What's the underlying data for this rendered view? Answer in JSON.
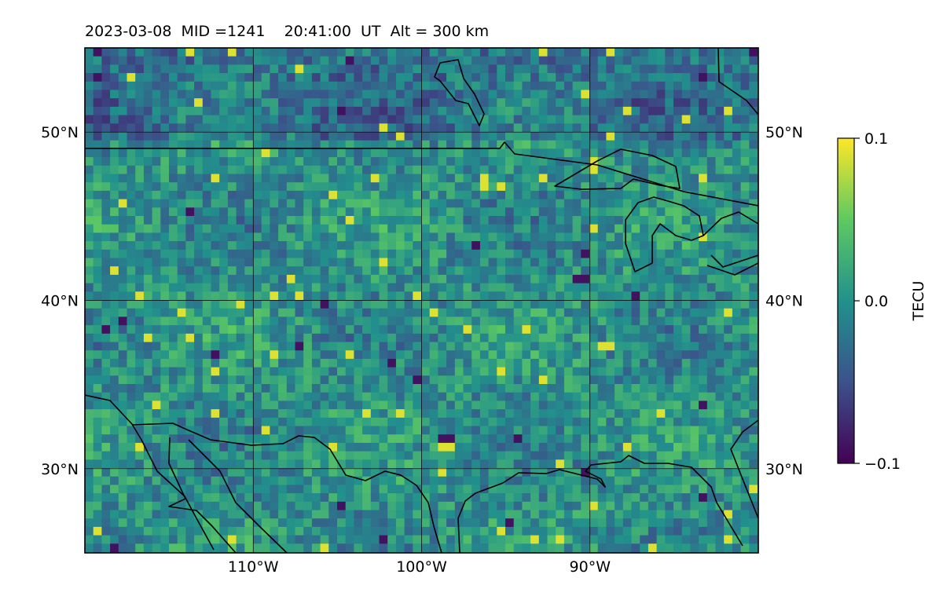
{
  "title": "2023-03-08  MID =1241    20:41:00  UT  Alt = 300 km",
  "map": {
    "lon_range": [
      -120,
      -80
    ],
    "lat_range": [
      25,
      55
    ],
    "lon_ticks": [
      {
        "value": -110,
        "label": "110°W"
      },
      {
        "value": -100,
        "label": "100°W"
      },
      {
        "value": -90,
        "label": "90°W"
      }
    ],
    "lat_ticks": [
      {
        "value": 30,
        "label": "30°N"
      },
      {
        "value": 40,
        "label": "40°N"
      },
      {
        "value": 50,
        "label": "50°N"
      }
    ]
  },
  "colorbar": {
    "label": "TECU",
    "range": [
      -0.1,
      0.1
    ],
    "ticks": [
      {
        "value": 0.1,
        "label": "0.1"
      },
      {
        "value": 0.0,
        "label": "0.0"
      },
      {
        "value": -0.1,
        "label": "−0.1"
      }
    ],
    "colormap": [
      "#440154",
      "#3b528b",
      "#21918c",
      "#5ec962",
      "#fde725"
    ]
  }
}
